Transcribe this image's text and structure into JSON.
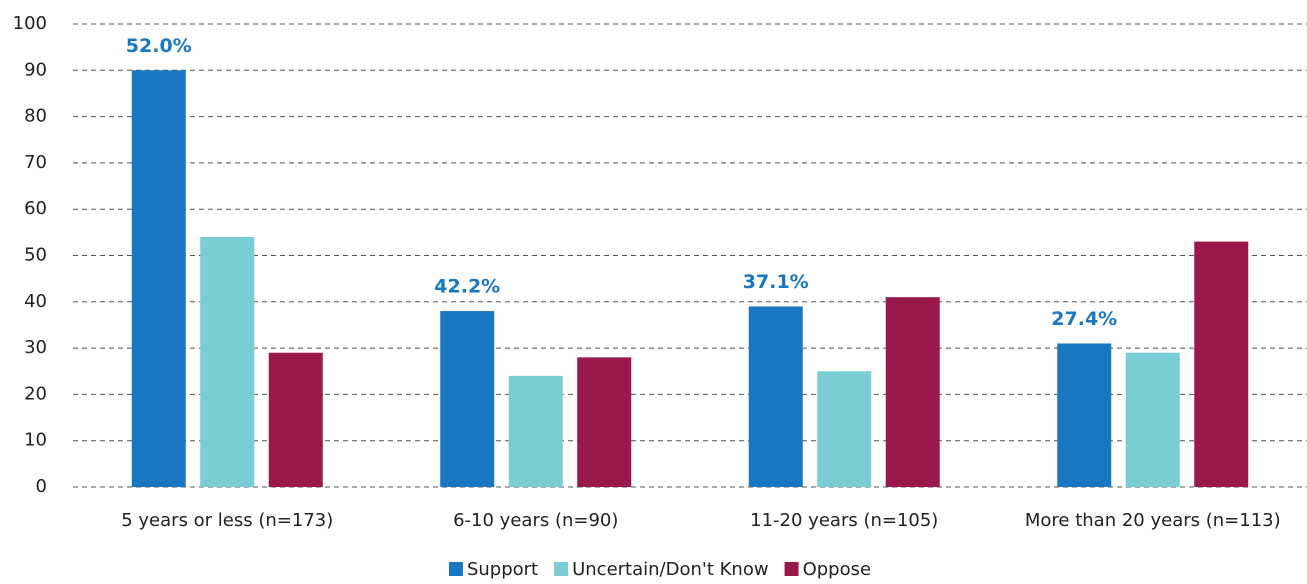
{
  "chart_data": {
    "type": "bar",
    "categories": [
      "5 years or less (n=173)",
      "6-10 years (n=90)",
      "11-20 years (n=105)",
      "More than 20 years (n=113)"
    ],
    "series": [
      {
        "name": "Support",
        "color": "#1a78c2",
        "values": [
          90,
          38,
          39,
          31
        ]
      },
      {
        "name": "Uncertain/Don't Know",
        "color": "#7acdd4",
        "values": [
          54,
          24,
          25,
          29
        ]
      },
      {
        "name": "Oppose",
        "color": "#99194c",
        "values": [
          29,
          28,
          41,
          53
        ]
      }
    ],
    "annotations": [
      "52.0%",
      "42.2%",
      "37.1%",
      "27.4%"
    ],
    "ylim": [
      0,
      100
    ],
    "yticks": [
      0,
      10,
      20,
      30,
      40,
      50,
      60,
      70,
      80,
      90,
      100
    ],
    "grid": true,
    "legend": "bottom"
  }
}
